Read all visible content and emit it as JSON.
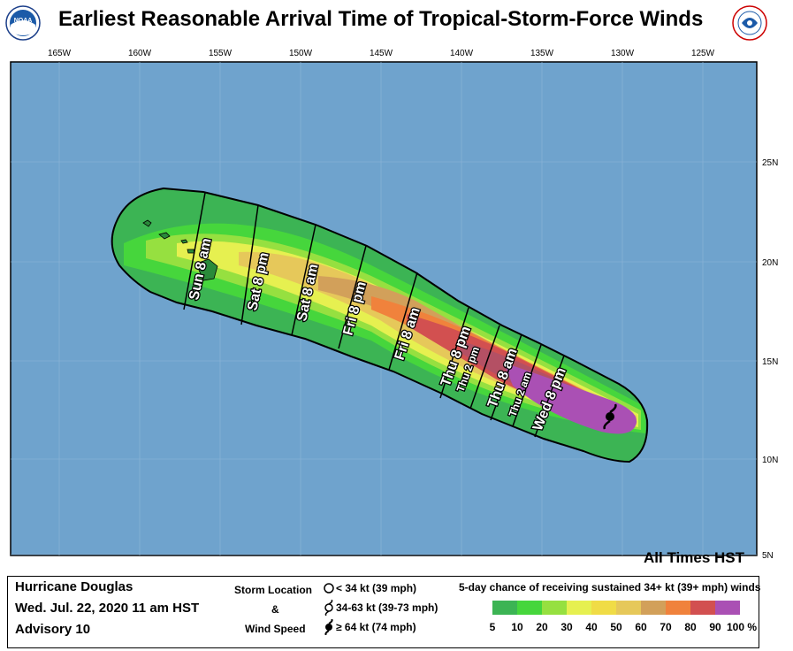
{
  "header": {
    "title": "Earliest Reasonable Arrival Time of Tropical-Storm-Force Winds",
    "left_logo_text": "NOAA",
    "right_logo_text": "NATIONAL WEATHER SERVICE"
  },
  "map": {
    "ocean_color": "#6fa3cd",
    "lon_labels": [
      "165W",
      "160W",
      "155W",
      "150W",
      "145W",
      "140W",
      "135W",
      "130W",
      "125W"
    ],
    "lat_labels": [
      "25N",
      "20N",
      "15N",
      "10N",
      "5N"
    ],
    "times_note": "All Times HST",
    "time_labels": [
      "Sun 8 am",
      "Sat 8 pm",
      "Sat 8 am",
      "Fri 8 pm",
      "Fri 8 am",
      "Thu 8 pm",
      "Thu 2 pm",
      "Thu 8 am",
      "Thu 2 am",
      "Wed 8 pm"
    ]
  },
  "legend": {
    "storm_name": "Hurricane Douglas",
    "date": "Wed. Jul. 22, 2020  11 am HST",
    "advisory": "Advisory 10",
    "storm_location_label": "Storm Location",
    "amp": "&",
    "wind_speed_label": "Wind Speed",
    "icon1_text": "< 34 kt (39 mph)",
    "icon2_text": "34-63 kt (39-73 mph)",
    "icon3_text": "≥ 64 kt (74 mph)",
    "prob_title": "5-day chance of receiving sustained 34+ kt (39+ mph) winds",
    "scale_labels": [
      "5",
      "10",
      "20",
      "30",
      "40",
      "50",
      "60",
      "70",
      "80",
      "90",
      "100 %"
    ],
    "scale_colors": [
      "#3cb454",
      "#46d63c",
      "#96e040",
      "#e6f050",
      "#f0dc46",
      "#e6c85a",
      "#d2a05a",
      "#f0823c",
      "#d25050",
      "#b45064",
      "#aa50b4"
    ]
  }
}
